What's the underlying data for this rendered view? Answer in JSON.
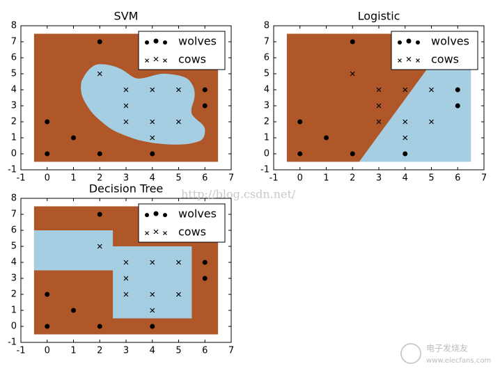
{
  "chart_data": [
    {
      "type": "scatter",
      "title": "SVM",
      "xlim": [
        -1,
        7
      ],
      "ylim": [
        -1,
        8
      ],
      "xticks": [
        -1,
        0,
        1,
        2,
        3,
        4,
        5,
        6,
        7
      ],
      "yticks": [
        -1,
        0,
        1,
        2,
        3,
        4,
        5,
        6,
        7,
        8
      ],
      "legend": "upper right",
      "series": [
        {
          "name": "wolves",
          "marker": "o",
          "color": "#000000",
          "x": [
            0,
            0,
            1,
            2,
            2,
            4,
            6,
            6
          ],
          "values": [
            0,
            2,
            1,
            0,
            7,
            0,
            3,
            4
          ]
        },
        {
          "name": "cows",
          "marker": "x",
          "color": "#000000",
          "x": [
            2,
            3,
            3,
            3,
            4,
            4,
            4,
            5,
            5
          ],
          "values": [
            5,
            2,
            3,
            4,
            1,
            2,
            4,
            2,
            4
          ]
        }
      ]
    },
    {
      "type": "scatter",
      "title": "Logistic",
      "xlim": [
        -1,
        7
      ],
      "ylim": [
        -1,
        8
      ],
      "xticks": [
        -1,
        0,
        1,
        2,
        3,
        4,
        5,
        6,
        7
      ],
      "yticks": [
        -1,
        0,
        1,
        2,
        3,
        4,
        5,
        6,
        7,
        8
      ],
      "legend": "upper right",
      "series": [
        {
          "name": "wolves",
          "marker": "o",
          "color": "#000000",
          "x": [
            0,
            0,
            1,
            2,
            2,
            4,
            6,
            6
          ],
          "values": [
            0,
            2,
            1,
            0,
            7,
            0,
            3,
            4
          ]
        },
        {
          "name": "cows",
          "marker": "x",
          "color": "#000000",
          "x": [
            2,
            3,
            3,
            3,
            4,
            4,
            4,
            5,
            5
          ],
          "values": [
            5,
            2,
            3,
            4,
            1,
            2,
            4,
            2,
            4
          ]
        }
      ]
    },
    {
      "type": "scatter",
      "title": "Decision Tree",
      "xlim": [
        -1,
        7
      ],
      "ylim": [
        -1,
        8
      ],
      "xticks": [
        -1,
        0,
        1,
        2,
        3,
        4,
        5,
        6,
        7
      ],
      "yticks": [
        -1,
        0,
        1,
        2,
        3,
        4,
        5,
        6,
        7,
        8
      ],
      "legend": "upper right",
      "series": [
        {
          "name": "wolves",
          "marker": "o",
          "color": "#000000",
          "x": [
            0,
            0,
            1,
            2,
            2,
            4,
            6,
            6
          ],
          "values": [
            0,
            2,
            1,
            0,
            7,
            0,
            3,
            4
          ]
        },
        {
          "name": "cows",
          "marker": "x",
          "color": "#000000",
          "x": [
            2,
            3,
            3,
            3,
            4,
            4,
            4,
            5,
            5
          ],
          "values": [
            5,
            2,
            3,
            4,
            1,
            2,
            4,
            2,
            4
          ]
        }
      ]
    }
  ],
  "watermark": "http://blog.csdn.net/",
  "logo": {
    "name": "电子发烧友",
    "url": "www.elecfans.com"
  }
}
